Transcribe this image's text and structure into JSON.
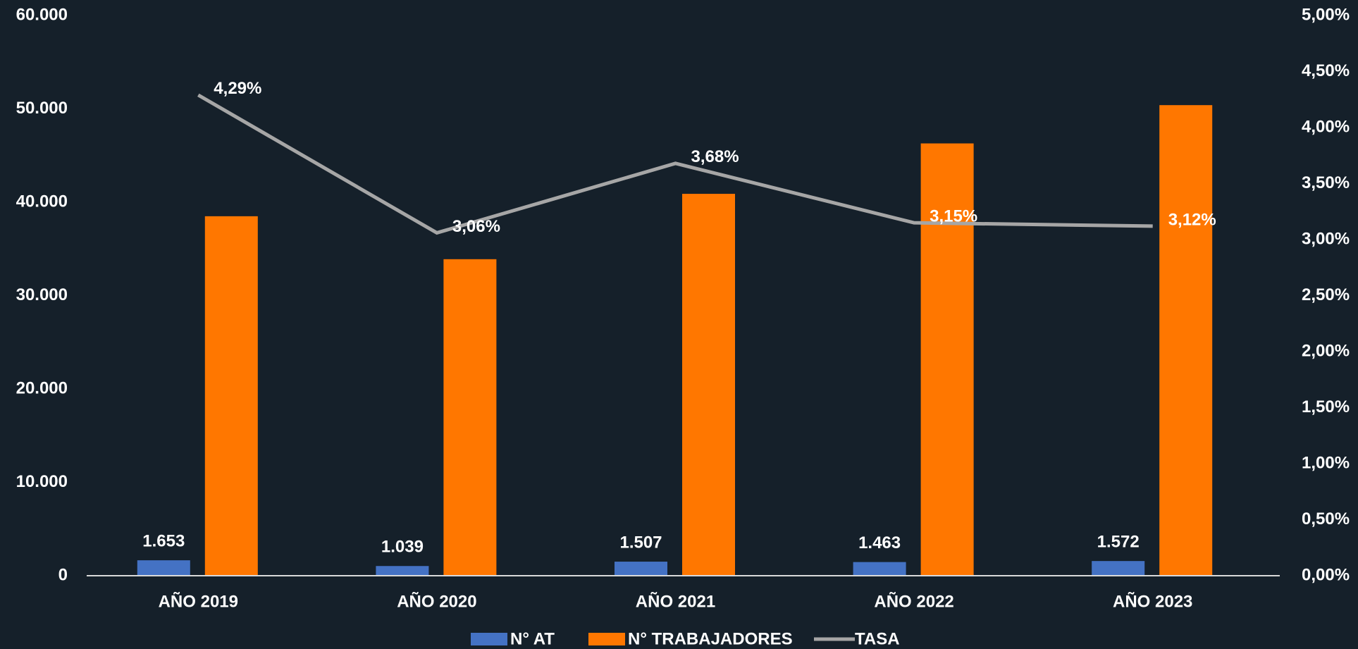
{
  "chart_data": {
    "type": "bar",
    "categories": [
      "AÑO 2019",
      "AÑO 2020",
      "AÑO 2021",
      "AÑO 2022",
      "AÑO 2023"
    ],
    "series": [
      {
        "name": "N° AT",
        "color": "#4472c4",
        "values": [
          1653,
          1039,
          1507,
          1463,
          1572
        ],
        "value_labels": [
          "1.653",
          "1.039",
          "1.507",
          "1.463",
          "1.572"
        ]
      },
      {
        "name": "N° TRABAJADORES",
        "color": "#ff7700",
        "values": [
          38500,
          33900,
          40900,
          46300,
          50400
        ]
      },
      {
        "name": "TASA",
        "color": "#a6a6a6",
        "type": "line",
        "axis": "y2",
        "values": [
          4.29,
          3.06,
          3.68,
          3.15,
          3.12
        ],
        "value_labels": [
          "4,29%",
          "3,06%",
          "3,68%",
          "3,15%",
          "3,12%"
        ]
      }
    ],
    "ylim": [
      0,
      60000
    ],
    "yticks": [
      0,
      {
        "value": 10000,
        "label": "10.000"
      },
      {
        "value": 20000,
        "label": "20.000"
      },
      {
        "value": 30000,
        "label": "30.000"
      },
      {
        "value": 40000,
        "label": "40.000"
      },
      {
        "value": 50000,
        "label": "50.000"
      },
      {
        "value": 60000,
        "label": "60.000"
      }
    ],
    "y2lim": [
      0,
      5
    ],
    "y2ticks": [
      {
        "value": 0,
        "label": "0,00%"
      },
      {
        "value": 0.5,
        "label": "0,50%"
      },
      {
        "value": 1,
        "label": "1,00%"
      },
      {
        "value": 1.5,
        "label": "1,50%"
      },
      {
        "value": 2,
        "label": "2,00%"
      },
      {
        "value": 2.5,
        "label": "2,50%"
      },
      {
        "value": 3,
        "label": "3,00%"
      },
      {
        "value": 3.5,
        "label": "3,50%"
      },
      {
        "value": 4,
        "label": "4,00%"
      },
      {
        "value": 4.5,
        "label": "4,50%"
      },
      {
        "value": 5,
        "label": "5,00%"
      }
    ],
    "legend": "bottom"
  }
}
